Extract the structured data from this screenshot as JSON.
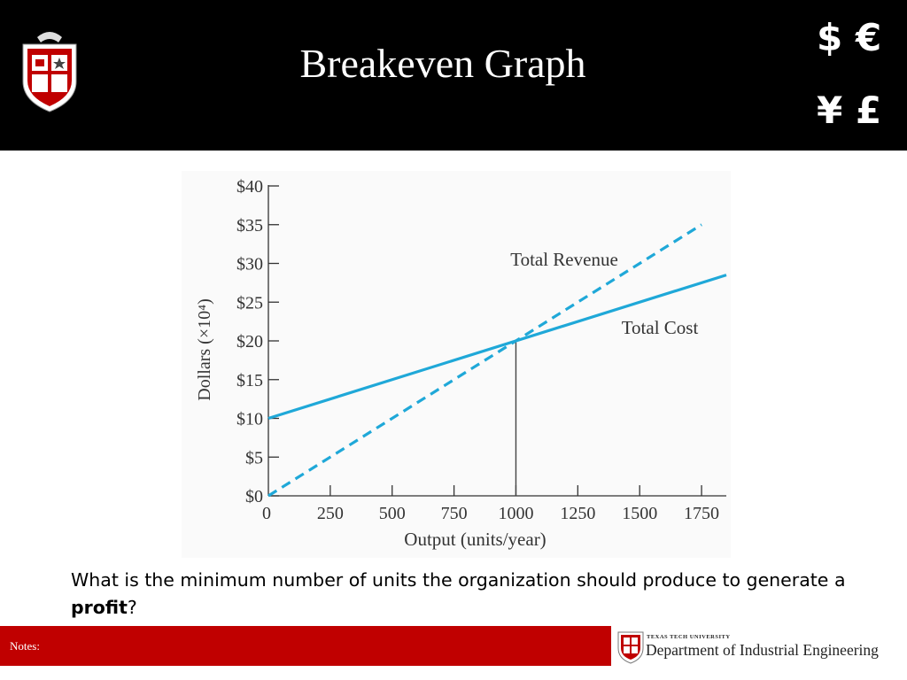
{
  "slide": {
    "title": "Breakeven Graph",
    "currency_symbols": [
      "$",
      "€",
      "¥",
      "£"
    ]
  },
  "question": {
    "prefix": "What is the minimum number of units the organization should produce to generate a ",
    "bold": "profit",
    "suffix": "?"
  },
  "footer": {
    "notes_label": "Notes:",
    "institution": "TEXAS TECH UNIVERSITY",
    "department": "Department of Industrial Engineering"
  },
  "colors": {
    "header_bg": "#000000",
    "footer_bar": "#c00000",
    "series_line": "#1fa8d8"
  },
  "chart_data": {
    "type": "line",
    "xlabel": "Output (units/year)",
    "ylabel": "Dollars (×10⁴)",
    "x_ticks": [
      0,
      250,
      500,
      750,
      1000,
      1250,
      1500,
      1750
    ],
    "y_ticks": [
      "$0",
      "$5",
      "$10",
      "$15",
      "$20",
      "$25",
      "$30",
      "$35",
      "$40"
    ],
    "y_tick_values": [
      0,
      5,
      10,
      15,
      20,
      25,
      30,
      35,
      40
    ],
    "xlim": [
      0,
      1850
    ],
    "ylim": [
      0,
      40
    ],
    "series": [
      {
        "name": "Total Revenue",
        "style": "dashed",
        "x": [
          0,
          1750
        ],
        "y": [
          0,
          35
        ]
      },
      {
        "name": "Total Cost",
        "style": "solid",
        "x": [
          0,
          1850
        ],
        "y": [
          10,
          28.5
        ]
      }
    ],
    "breakeven": {
      "x": 1000,
      "y": 20
    },
    "grid": false,
    "legend": "inline labels"
  }
}
